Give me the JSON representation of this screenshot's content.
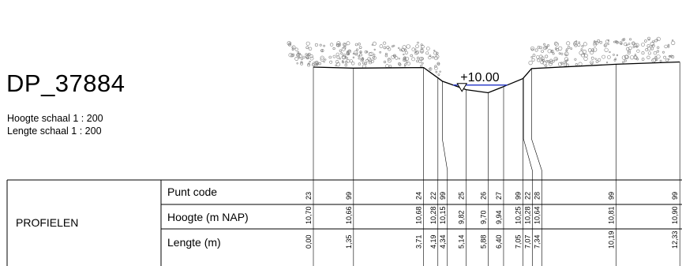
{
  "title": "DP_37884",
  "scale_vertical": "Hoogte schaal 1 : 200",
  "scale_horizontal": "Lengte schaal 1 : 200",
  "section_label": "PROFIELEN",
  "row_labels": {
    "punt_code": "Punt code",
    "hoogte": "Hoogte  (m NAP)",
    "lengte": "Lengte (m)"
  },
  "water_level_label": "+10.00",
  "colors": {
    "water_line": "#3344cc",
    "line": "#000000",
    "vegetation": "#808080"
  },
  "points": [
    {
      "code": "23",
      "hoogte": "10,70",
      "lengte": "0,00",
      "h": 10.7,
      "l": 0.0
    },
    {
      "code": "99",
      "hoogte": "10,66",
      "lengte": "1,35",
      "h": 10.66,
      "l": 1.35
    },
    {
      "code": "24",
      "hoogte": "10,68",
      "lengte": "3,71",
      "h": 10.68,
      "l": 3.71
    },
    {
      "code": "22",
      "hoogte": "10,28",
      "lengte": "4,19",
      "h": 10.28,
      "l": 4.19
    },
    {
      "code": "99",
      "hoogte": "10,15",
      "lengte": "4,34",
      "h": 10.15,
      "l": 4.34
    },
    {
      "code": "25",
      "hoogte": "9,82",
      "lengte": "5,14",
      "h": 9.82,
      "l": 5.14
    },
    {
      "code": "26",
      "hoogte": "9,70",
      "lengte": "5,88",
      "h": 9.7,
      "l": 5.88
    },
    {
      "code": "27",
      "hoogte": "9,94",
      "lengte": "6,40",
      "h": 9.94,
      "l": 6.4
    },
    {
      "code": "99",
      "hoogte": "10,25",
      "lengte": "7,05",
      "h": 10.25,
      "l": 7.05
    },
    {
      "code": "22",
      "hoogte": "10,28",
      "lengte": "7,07",
      "h": 10.28,
      "l": 7.07
    },
    {
      "code": "28",
      "hoogte": "10,64",
      "lengte": "7,34",
      "h": 10.64,
      "l": 7.34
    },
    {
      "code": "99",
      "hoogte": "10,81",
      "lengte": "10,19",
      "h": 10.81,
      "l": 10.19
    },
    {
      "code": "99",
      "hoogte": "10,90",
      "lengte": "12,33",
      "h": 10.9,
      "l": 12.33
    }
  ]
}
